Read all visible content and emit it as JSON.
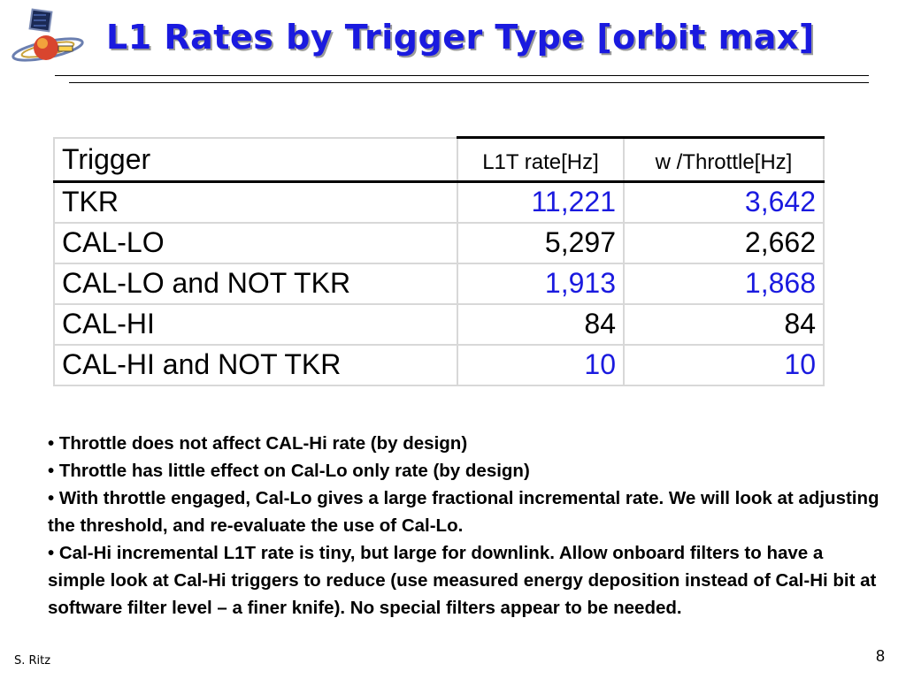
{
  "slide": {
    "title": "L1 Rates by Trigger Type [orbit max]",
    "author": "S. Ritz",
    "page_number": "8"
  },
  "colors": {
    "title": "#1a1adf",
    "highlight_values": "#1a1adf"
  },
  "table": {
    "headers": [
      "Trigger",
      "L1T rate[Hz]",
      "w /Throttle[Hz]"
    ],
    "rows": [
      {
        "trigger": "TKR",
        "l1t_rate": "11,221",
        "throttle_rate": "3,642",
        "highlighted": true
      },
      {
        "trigger": "CAL-LO",
        "l1t_rate": "5,297",
        "throttle_rate": "2,662",
        "highlighted": false
      },
      {
        "trigger": "CAL-LO and NOT TKR",
        "l1t_rate": "1,913",
        "throttle_rate": "1,868",
        "highlighted": true
      },
      {
        "trigger": "CAL-HI",
        "l1t_rate": "84",
        "throttle_rate": "84",
        "highlighted": false
      },
      {
        "trigger": "CAL-HI and NOT TKR",
        "l1t_rate": "10",
        "throttle_rate": "10",
        "highlighted": true
      }
    ]
  },
  "bullets": [
    "Throttle does not affect CAL-Hi rate (by design)",
    "Throttle has little effect on Cal-Lo only rate (by design)",
    "With throttle engaged, Cal-Lo gives a large fractional incremental rate.  We will look at adjusting the threshold, and re-evaluate the use of Cal-Lo.",
    "Cal-Hi incremental L1T rate is tiny, but large for downlink.  Allow onboard filters to have a simple look at Cal-Hi triggers to reduce (use measured energy deposition instead of Cal-Hi bit at software filter level – a finer knife).  No special filters appear to be needed."
  ],
  "logo_icon": "satellite-logo-icon"
}
